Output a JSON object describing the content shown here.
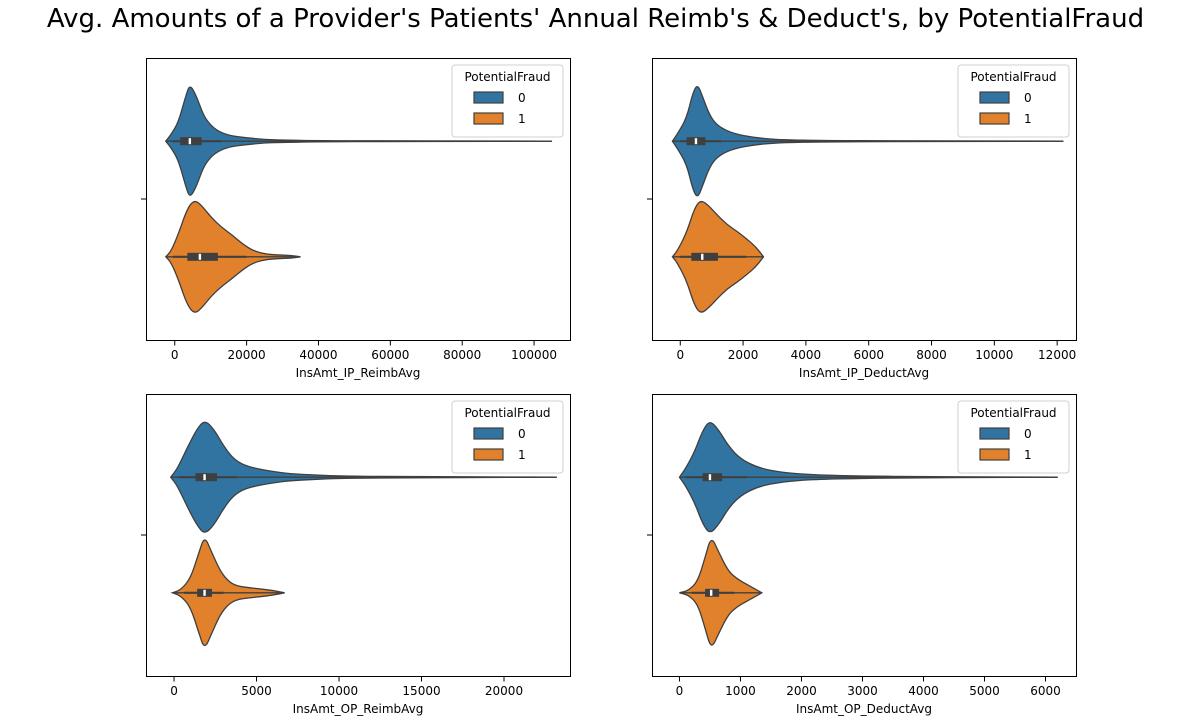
{
  "figure": {
    "title": "Avg. Amounts of a Provider's Patients' Annual Reimb's & Deduct's, by PotentialFraud",
    "colors": {
      "class_0": "#3274a1",
      "class_1": "#e1812c",
      "edge": "#3f3f3f",
      "box": "#3f3f3f",
      "median": "#ffffff"
    }
  },
  "chart_data": [
    {
      "type": "violin",
      "xlabel": "InsAmt_IP_ReimbAvg",
      "xlim": [
        -8000,
        110000
      ],
      "xticks": [
        0,
        20000,
        40000,
        60000,
        80000,
        100000
      ],
      "xtick_labels": [
        "0",
        "20000",
        "40000",
        "60000",
        "80000",
        "100000"
      ],
      "legend": {
        "title": "PotentialFraud",
        "position": "upper-right",
        "entries": [
          "0",
          "1"
        ]
      },
      "series": [
        {
          "name": "0",
          "min": -2500,
          "q1": 1500,
          "median": 4200,
          "q3": 7500,
          "whisker_low": -500,
          "whisker_high": 13000,
          "max": 105000,
          "density": [
            [
              -2500,
              0.0
            ],
            [
              -1000,
              0.12
            ],
            [
              1000,
              0.33
            ],
            [
              3000,
              0.78
            ],
            [
              4200,
              1.0
            ],
            [
              6000,
              0.8
            ],
            [
              8000,
              0.45
            ],
            [
              10000,
              0.28
            ],
            [
              12000,
              0.18
            ],
            [
              15000,
              0.1
            ],
            [
              20000,
              0.06
            ],
            [
              25000,
              0.03
            ],
            [
              30000,
              0.02
            ],
            [
              40000,
              0.01
            ],
            [
              60000,
              0.006
            ],
            [
              80000,
              0.004
            ],
            [
              100000,
              0.003
            ],
            [
              105000,
              0.0
            ]
          ]
        },
        {
          "name": "1",
          "min": -2500,
          "q1": 3500,
          "median": 7000,
          "q3": 12000,
          "whisker_low": -500,
          "whisker_high": 20000,
          "max": 35000,
          "density": [
            [
              -2500,
              0.0
            ],
            [
              -1000,
              0.1
            ],
            [
              1000,
              0.4
            ],
            [
              3500,
              0.85
            ],
            [
              5500,
              1.0
            ],
            [
              7500,
              0.9
            ],
            [
              10000,
              0.7
            ],
            [
              13000,
              0.52
            ],
            [
              16000,
              0.38
            ],
            [
              19000,
              0.22
            ],
            [
              22000,
              0.1
            ],
            [
              26000,
              0.04
            ],
            [
              30000,
              0.03
            ],
            [
              33000,
              0.02
            ],
            [
              35000,
              0.0
            ]
          ]
        }
      ]
    },
    {
      "type": "violin",
      "xlabel": "InsAmt_IP_DeductAvg",
      "xlim": [
        -900,
        12600
      ],
      "xticks": [
        0,
        2000,
        4000,
        6000,
        8000,
        10000,
        12000
      ],
      "xtick_labels": [
        "0",
        "2000",
        "4000",
        "6000",
        "8000",
        "10000",
        "12000"
      ],
      "legend": {
        "title": "PotentialFraud",
        "position": "upper-right",
        "entries": [
          "0",
          "1"
        ]
      },
      "series": [
        {
          "name": "0",
          "min": -250,
          "q1": 200,
          "median": 500,
          "q3": 800,
          "whisker_low": 0,
          "whisker_high": 1300,
          "max": 12200,
          "density": [
            [
              -250,
              0.0
            ],
            [
              -100,
              0.12
            ],
            [
              200,
              0.4
            ],
            [
              400,
              0.85
            ],
            [
              550,
              1.0
            ],
            [
              700,
              0.8
            ],
            [
              900,
              0.5
            ],
            [
              1100,
              0.32
            ],
            [
              1400,
              0.2
            ],
            [
              1800,
              0.12
            ],
            [
              2300,
              0.07
            ],
            [
              2800,
              0.04
            ],
            [
              3300,
              0.025
            ],
            [
              4500,
              0.012
            ],
            [
              7000,
              0.006
            ],
            [
              10000,
              0.004
            ],
            [
              12200,
              0.0
            ]
          ]
        },
        {
          "name": "1",
          "min": -250,
          "q1": 350,
          "median": 700,
          "q3": 1200,
          "whisker_low": 0,
          "whisker_high": 2100,
          "max": 2650,
          "density": [
            [
              -250,
              0.0
            ],
            [
              -100,
              0.1
            ],
            [
              200,
              0.42
            ],
            [
              450,
              0.85
            ],
            [
              650,
              1.0
            ],
            [
              900,
              0.9
            ],
            [
              1200,
              0.72
            ],
            [
              1500,
              0.56
            ],
            [
              1800,
              0.45
            ],
            [
              2100,
              0.32
            ],
            [
              2400,
              0.18
            ],
            [
              2650,
              0.0
            ]
          ]
        }
      ]
    },
    {
      "type": "violin",
      "xlabel": "InsAmt_OP_ReimbAvg",
      "xlim": [
        -1700,
        24000
      ],
      "xticks": [
        0,
        5000,
        10000,
        15000,
        20000
      ],
      "xtick_labels": [
        "0",
        "5000",
        "10000",
        "15000",
        "20000"
      ],
      "legend": {
        "title": "PotentialFraud",
        "position": "upper-right",
        "entries": [
          "0",
          "1"
        ]
      },
      "series": [
        {
          "name": "0",
          "min": -200,
          "q1": 1300,
          "median": 1850,
          "q3": 2600,
          "whisker_low": 300,
          "whisker_high": 3800,
          "max": 23200,
          "density": [
            [
              -200,
              0.0
            ],
            [
              200,
              0.15
            ],
            [
              800,
              0.52
            ],
            [
              1400,
              0.85
            ],
            [
              1850,
              1.0
            ],
            [
              2400,
              0.85
            ],
            [
              3000,
              0.55
            ],
            [
              3600,
              0.32
            ],
            [
              4300,
              0.2
            ],
            [
              5200,
              0.14
            ],
            [
              6000,
              0.1
            ],
            [
              7000,
              0.06
            ],
            [
              8500,
              0.04
            ],
            [
              10000,
              0.02
            ],
            [
              15000,
              0.008
            ],
            [
              20000,
              0.005
            ],
            [
              23200,
              0.0
            ]
          ]
        },
        {
          "name": "1",
          "min": -100,
          "q1": 1400,
          "median": 1850,
          "q3": 2300,
          "whisker_low": 600,
          "whisker_high": 3000,
          "max": 6700,
          "density": [
            [
              -100,
              0.0
            ],
            [
              400,
              0.05
            ],
            [
              1000,
              0.25
            ],
            [
              1500,
              0.7
            ],
            [
              1850,
              1.0
            ],
            [
              2300,
              0.7
            ],
            [
              2800,
              0.38
            ],
            [
              3300,
              0.2
            ],
            [
              3800,
              0.12
            ],
            [
              4500,
              0.09
            ],
            [
              5200,
              0.07
            ],
            [
              6000,
              0.04
            ],
            [
              6700,
              0.0
            ]
          ]
        }
      ]
    },
    {
      "type": "violin",
      "xlabel": "InsAmt_OP_DeductAvg",
      "xlim": [
        -450,
        6500
      ],
      "xticks": [
        0,
        1000,
        2000,
        3000,
        4000,
        5000,
        6000
      ],
      "xtick_labels": [
        "0",
        "1000",
        "2000",
        "3000",
        "4000",
        "5000",
        "6000"
      ],
      "legend": {
        "title": "PotentialFraud",
        "position": "upper-right",
        "entries": [
          "0",
          "1"
        ]
      },
      "series": [
        {
          "name": "0",
          "min": 0,
          "q1": 380,
          "median": 500,
          "q3": 700,
          "whisker_low": 100,
          "whisker_high": 1100,
          "max": 6200,
          "density": [
            [
              0,
              0.0
            ],
            [
              100,
              0.15
            ],
            [
              250,
              0.45
            ],
            [
              380,
              0.82
            ],
            [
              500,
              1.0
            ],
            [
              650,
              0.82
            ],
            [
              800,
              0.55
            ],
            [
              1000,
              0.32
            ],
            [
              1300,
              0.16
            ],
            [
              1700,
              0.08
            ],
            [
              2200,
              0.04
            ],
            [
              3000,
              0.02
            ],
            [
              4000,
              0.01
            ],
            [
              5000,
              0.006
            ],
            [
              6200,
              0.0
            ]
          ]
        },
        {
          "name": "1",
          "min": 0,
          "q1": 420,
          "median": 520,
          "q3": 650,
          "whisker_low": 200,
          "whisker_high": 900,
          "max": 1350,
          "density": [
            [
              0,
              0.0
            ],
            [
              150,
              0.04
            ],
            [
              300,
              0.2
            ],
            [
              420,
              0.62
            ],
            [
              520,
              1.0
            ],
            [
              650,
              0.7
            ],
            [
              800,
              0.38
            ],
            [
              950,
              0.24
            ],
            [
              1100,
              0.15
            ],
            [
              1250,
              0.06
            ],
            [
              1350,
              0.0
            ]
          ]
        }
      ]
    }
  ]
}
